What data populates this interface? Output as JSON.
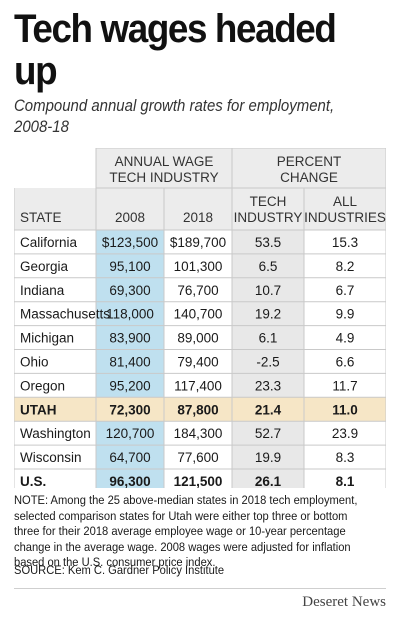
{
  "title": "Tech wages headed up",
  "subtitle": "Compound annual growth rates for employment, 2008-18",
  "chart_data": {
    "type": "table",
    "group_headers": [
      {
        "line1": "ANNUAL WAGE",
        "line2": "TECH INDUSTRY"
      },
      {
        "line1": "PERCENT",
        "line2": "CHANGE"
      }
    ],
    "columns": [
      {
        "line1": "",
        "line2": "STATE"
      },
      {
        "line1": "",
        "line2": "2008"
      },
      {
        "line1": "",
        "line2": "2018"
      },
      {
        "line1": "TECH",
        "line2": "INDUSTRY"
      },
      {
        "line1": "ALL",
        "line2": "INDUSTRIES"
      }
    ],
    "rows": [
      {
        "state": "California",
        "w2008": "$123,500",
        "w2018": "$189,700",
        "tech": "53.5",
        "all": "15.3"
      },
      {
        "state": "Georgia",
        "w2008": "95,100",
        "w2018": "101,300",
        "tech": "6.5",
        "all": "8.2"
      },
      {
        "state": "Indiana",
        "w2008": "69,300",
        "w2018": "76,700",
        "tech": "10.7",
        "all": "6.7"
      },
      {
        "state": "Massachusetts",
        "w2008": "118,000",
        "w2018": "140,700",
        "tech": "19.2",
        "all": "9.9"
      },
      {
        "state": "Michigan",
        "w2008": "83,900",
        "w2018": "89,000",
        "tech": "6.1",
        "all": "4.9"
      },
      {
        "state": "Ohio",
        "w2008": "81,400",
        "w2018": "79,400",
        "tech": "-2.5",
        "all": "6.6"
      },
      {
        "state": "Oregon",
        "w2008": "95,200",
        "w2018": "117,400",
        "tech": "23.3",
        "all": "11.7"
      },
      {
        "state": "UTAH",
        "w2008": "72,300",
        "w2018": "87,800",
        "tech": "21.4",
        "all": "11.0",
        "highlight": true
      },
      {
        "state": "Washington",
        "w2008": "120,700",
        "w2018": "184,300",
        "tech": "52.7",
        "all": "23.9"
      },
      {
        "state": "Wisconsin",
        "w2008": "64,700",
        "w2018": "77,600",
        "tech": "19.9",
        "all": "8.3"
      },
      {
        "state": "U.S.",
        "w2008": "96,300",
        "w2018": "121,500",
        "tech": "26.1",
        "all": "8.1",
        "bold": true
      }
    ]
  },
  "colors": {
    "col_2008_bg": "#bfe0ef",
    "tech_bg": "#e8e8e8",
    "header_bg": "#ececec",
    "utah_bg": "#f6e6c6",
    "grid": "#c9c9c9"
  },
  "note": "NOTE: Among the 25 above-median states in 2018 tech employment, selected comparison states for Utah were either top three or bottom three for their 2018 average employee wage or 10-year percentage change in the average wage. 2008 wages were adjusted for inflation based on the U.S. consumer price index.",
  "source": "SOURCE: Kem C. Gardner Policy Institute",
  "brand": "Deseret News"
}
